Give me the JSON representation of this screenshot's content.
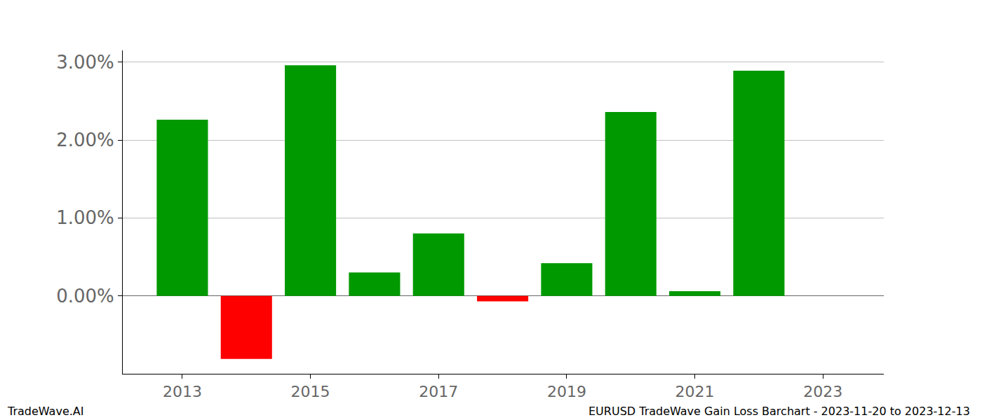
{
  "chart_data": {
    "type": "bar",
    "title": "EURUSD TradeWave Gain Loss Barchart - 2023-11-20 to 2023-12-13",
    "annotations": [
      "TradeWave.AI"
    ],
    "x": [
      2013,
      2014,
      2015,
      2016,
      2017,
      2018,
      2019,
      2020,
      2021,
      2022
    ],
    "values": [
      2.26,
      -0.81,
      2.96,
      0.3,
      0.8,
      -0.07,
      0.42,
      2.36,
      0.06,
      2.89
    ],
    "colors": [
      "#009900",
      "#ff0000",
      "#009900",
      "#009900",
      "#009900",
      "#ff0000",
      "#009900",
      "#009900",
      "#009900",
      "#009900"
    ],
    "xlim": [
      2012.07,
      2023.95
    ],
    "xticks": [
      2013,
      2015,
      2017,
      2019,
      2021,
      2023
    ],
    "ylim": [
      -1.0,
      3.15
    ],
    "yticks": [
      {
        "value": 0,
        "label": "0.00%"
      },
      {
        "value": 1,
        "label": "1.00%"
      },
      {
        "value": 2,
        "label": "2.00%"
      },
      {
        "value": 3,
        "label": "3.00%"
      }
    ],
    "grid": true
  }
}
